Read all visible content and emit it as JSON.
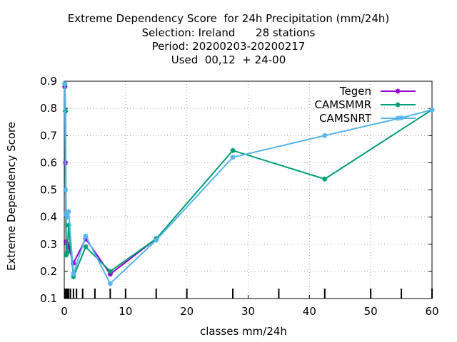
{
  "chart_data": {
    "type": "line",
    "title_lines": [
      "Extreme Dependency Score  for 24h Precipitation (mm/24h)",
      "Selection: Ireland      28 stations",
      "Period: 20200203-20200217",
      "Used  00,12  + 24-00"
    ],
    "xlabel": "classes mm/24h",
    "ylabel": "Extreme Dependency Score",
    "xlim": [
      0,
      60
    ],
    "ylim": [
      0.1,
      0.9
    ],
    "x_ticks": [
      0,
      10,
      20,
      30,
      40,
      50,
      60
    ],
    "x_tick_labels": [
      "0",
      "10",
      "20",
      "30",
      "40",
      "50",
      "60"
    ],
    "y_ticks": [
      0.1,
      0.2,
      0.3,
      0.4,
      0.5,
      0.6,
      0.7,
      0.8,
      0.9
    ],
    "y_tick_labels": [
      "0.1",
      "0.2",
      "0.3",
      "0.4",
      "0.5",
      "0.6",
      "0.7",
      "0.8",
      "0.9"
    ],
    "grid": true,
    "legend_position": "top-right",
    "class_markers_x": [
      0.1,
      0.2,
      0.3,
      0.5,
      0.7,
      1,
      1.5,
      2,
      3,
      5,
      7.5,
      10,
      15,
      20,
      27.5,
      35,
      42.5,
      50,
      55,
      60
    ],
    "series": [
      {
        "name": "Tegen",
        "color": "#9400d3",
        "x": [
          0.1,
          0.2,
          0.3,
          0.5,
          0.7,
          1.5,
          3.5,
          7.5,
          15
        ],
        "y": [
          0.88,
          0.6,
          0.31,
          0.3,
          0.29,
          0.23,
          0.32,
          0.19,
          0.32
        ]
      },
      {
        "name": "CAMSMMR",
        "color": "#009e73",
        "x": [
          0.1,
          0.2,
          0.3,
          0.5,
          0.7,
          1.5,
          3.5,
          7.5,
          15,
          27.5,
          42.5,
          60
        ],
        "y": [
          0.89,
          0.79,
          0.26,
          0.27,
          0.37,
          0.18,
          0.29,
          0.2,
          0.32,
          0.645,
          0.54,
          0.795
        ]
      },
      {
        "name": "CAMSNRT",
        "color": "#56b4e9",
        "x": [
          0.1,
          0.2,
          0.3,
          0.5,
          0.7,
          1.5,
          3.5,
          7.5,
          15,
          27.5,
          42.5,
          55,
          60
        ],
        "y": [
          0.89,
          0.5,
          0.41,
          0.4,
          0.42,
          0.19,
          0.33,
          0.155,
          0.315,
          0.62,
          0.7,
          0.765,
          0.795
        ]
      }
    ]
  }
}
